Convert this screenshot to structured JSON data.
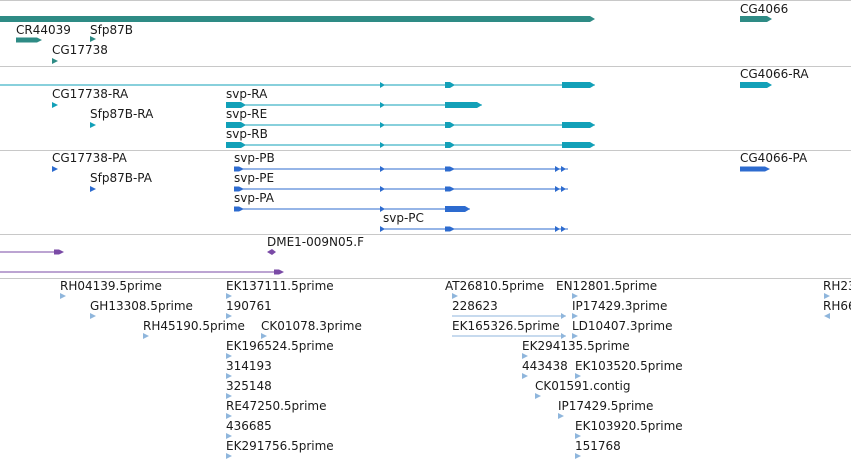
{
  "colors": {
    "gene": "#2e8b85",
    "mrna": "#12a0b8",
    "protein": "#2d6bcf",
    "est_contig": "#7a4aa6",
    "est": "#8fb6dc",
    "separator": "#c8c8c8"
  },
  "tracks": {
    "gene": {
      "labels": [
        "CR44039",
        "Sfp87B",
        "CG17738",
        "CG4066"
      ]
    },
    "mrna": {
      "labels": [
        "CG17738-RA",
        "Sfp87B-RA",
        "svp-RA",
        "svp-RE",
        "svp-RB",
        "CG4066-RA"
      ]
    },
    "protein": {
      "labels": [
        "CG17738-PA",
        "Sfp87B-PA",
        "svp-PB",
        "svp-PE",
        "svp-PA",
        "svp-PC",
        "CG4066-PA"
      ]
    },
    "est_contig": {
      "labels": [
        "DME1-009N05.F"
      ]
    },
    "est": {
      "labels": [
        "RH04139.5prime",
        "GH13308.5prime",
        "RH45190.5prime",
        "EK137111.5prime",
        "190761",
        "CK01078.3prime",
        "EK196524.5prime",
        "314193",
        "325148",
        "RE47250.5prime",
        "436685",
        "EK291756.5prime",
        "AT26810.5prime",
        "228623",
        "EK165326.5prime",
        "EN12801.5prime",
        "IP17429.3prime",
        "LD10407.3prime",
        "EK294135.5prime",
        "443438",
        "EK103520.5prime",
        "CK01591.contig",
        "IP17429.5prime",
        "EK103920.5prime",
        "151768",
        "RH23",
        "RH66"
      ]
    }
  }
}
